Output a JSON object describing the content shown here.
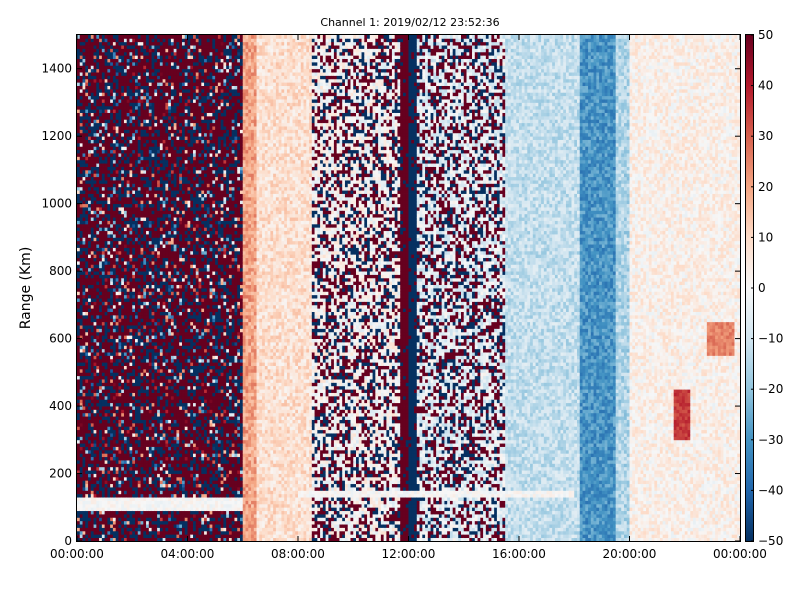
{
  "chart_data": {
    "type": "heatmap",
    "title": "Channel 1: 2019/02/12 23:52:36",
    "xlabel": "",
    "ylabel": "Range (Km)",
    "x_ticks": [
      "00:00:00",
      "04:00:00",
      "08:00:00",
      "12:00:00",
      "16:00:00",
      "20:00:00",
      "00:00:00"
    ],
    "x_tick_hours": [
      0,
      4,
      8,
      12,
      16,
      20,
      24
    ],
    "xlim_hours": [
      0,
      24
    ],
    "y_ticks": [
      0,
      200,
      400,
      600,
      800,
      1000,
      1200,
      1400
    ],
    "ylim": [
      0,
      1500
    ],
    "colorbar": {
      "ticks": [
        50,
        40,
        30,
        20,
        10,
        0,
        -10,
        -20,
        -30,
        -40,
        -50
      ],
      "range": [
        -50,
        50
      ],
      "colormap": "RdBu_r",
      "stops": [
        "#053061",
        "#2166ac",
        "#4393c3",
        "#92c5de",
        "#d1e5f0",
        "#f7f7f7",
        "#fddbc7",
        "#f4a582",
        "#d6604d",
        "#b2182b",
        "#67001f"
      ]
    },
    "grid": false,
    "time_segments_hours": [
      {
        "from": 0.0,
        "to": 6.0,
        "pattern": "noise_saturated",
        "value_range": [
          -50,
          50
        ]
      },
      {
        "from": 6.0,
        "to": 6.5,
        "pattern": "smooth",
        "mean": 20
      },
      {
        "from": 6.5,
        "to": 8.5,
        "pattern": "smooth",
        "mean": 8
      },
      {
        "from": 8.5,
        "to": 11.7,
        "pattern": "noise_sparse",
        "mean": 0
      },
      {
        "from": 11.7,
        "to": 12.3,
        "pattern": "split_band",
        "value_range": [
          -50,
          50
        ]
      },
      {
        "from": 12.3,
        "to": 15.5,
        "pattern": "noise_sparse",
        "mean": -5
      },
      {
        "from": 15.5,
        "to": 18.2,
        "pattern": "smooth",
        "mean": -12
      },
      {
        "from": 18.2,
        "to": 19.5,
        "pattern": "smooth",
        "mean": -30
      },
      {
        "from": 19.5,
        "to": 20.0,
        "pattern": "smooth",
        "mean": -15
      },
      {
        "from": 20.0,
        "to": 24.0,
        "pattern": "smooth",
        "mean": 3
      }
    ],
    "features": [
      {
        "hours": [
          21.6,
          22.2
        ],
        "range_km": [
          300,
          450
        ],
        "value": 35
      },
      {
        "hours": [
          22.8,
          23.8
        ],
        "range_km": [
          550,
          650
        ],
        "value": 25
      },
      {
        "hours": [
          0.0,
          6.0
        ],
        "range_km": [
          90,
          130
        ],
        "value": 0
      },
      {
        "hours": [
          8.0,
          18.0
        ],
        "range_km": [
          130,
          150
        ],
        "value": 0
      }
    ]
  }
}
